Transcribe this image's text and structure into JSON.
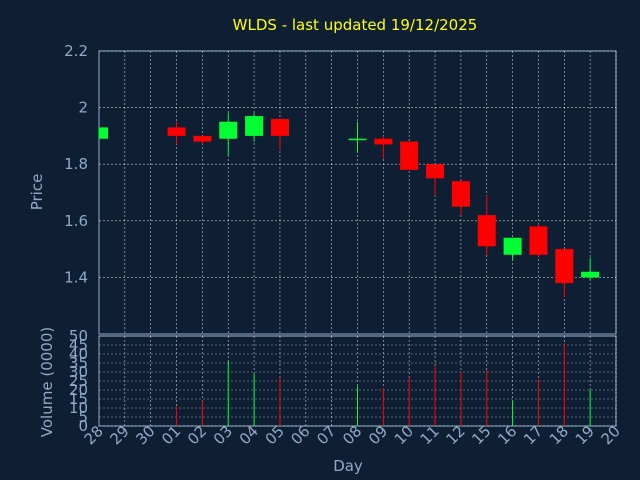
{
  "chart_data": {
    "type": "candlestick",
    "title": "WLDS - last updated 19/12/2025",
    "xlabel": "Day",
    "ylabel": "Price",
    "volume_label": "Volume (0000)",
    "ylim": [
      1.2,
      2.2
    ],
    "y_ticks": [
      "1.4",
      "1.6",
      "1.8",
      "2",
      "2.2"
    ],
    "volume_ylim": [
      0,
      50
    ],
    "volume_ticks": [
      "0",
      "5",
      "10",
      "15",
      "20",
      "25",
      "30",
      "35",
      "40",
      "45",
      "50"
    ],
    "grid": true,
    "colors": {
      "up": "#00ff33",
      "down": "#ff0000",
      "background": "#0f1f33",
      "title": "#ffff00",
      "axis_text": "#8fa9c9",
      "grid": "#ffffff"
    },
    "categories": [
      "28",
      "29",
      "30",
      "01",
      "02",
      "03",
      "04",
      "05",
      "06",
      "07",
      "08",
      "09",
      "10",
      "11",
      "12",
      "15",
      "16",
      "17",
      "18",
      "19",
      "20"
    ],
    "candles": [
      {
        "day": "28",
        "open": 1.89,
        "close": 1.93,
        "high": 1.93,
        "low": 1.89,
        "volume": 0
      },
      {
        "day": "01",
        "open": 1.93,
        "close": 1.9,
        "high": 1.95,
        "low": 1.87,
        "volume": 11
      },
      {
        "day": "02",
        "open": 1.9,
        "close": 1.88,
        "high": 1.9,
        "low": 1.87,
        "volume": 14
      },
      {
        "day": "03",
        "open": 1.89,
        "close": 1.95,
        "high": 1.98,
        "low": 1.83,
        "volume": 36
      },
      {
        "day": "04",
        "open": 1.9,
        "close": 1.97,
        "high": 1.98,
        "low": 1.88,
        "volume": 29
      },
      {
        "day": "05",
        "open": 1.96,
        "close": 1.9,
        "high": 1.96,
        "low": 1.85,
        "volume": 27
      },
      {
        "day": "08",
        "open": 1.89,
        "close": 1.89,
        "high": 1.95,
        "low": 1.84,
        "volume": 22
      },
      {
        "day": "09",
        "open": 1.89,
        "close": 1.87,
        "high": 1.9,
        "low": 1.82,
        "volume": 21
      },
      {
        "day": "10",
        "open": 1.88,
        "close": 1.78,
        "high": 1.88,
        "low": 1.78,
        "volume": 27
      },
      {
        "day": "11",
        "open": 1.8,
        "close": 1.75,
        "high": 1.8,
        "low": 1.69,
        "volume": 33
      },
      {
        "day": "12",
        "open": 1.74,
        "close": 1.65,
        "high": 1.74,
        "low": 1.62,
        "volume": 30
      },
      {
        "day": "15",
        "open": 1.62,
        "close": 1.51,
        "high": 1.69,
        "low": 1.48,
        "volume": 31
      },
      {
        "day": "16",
        "open": 1.48,
        "close": 1.54,
        "high": 1.54,
        "low": 1.46,
        "volume": 14
      },
      {
        "day": "17",
        "open": 1.58,
        "close": 1.48,
        "high": 1.59,
        "low": 1.47,
        "volume": 26
      },
      {
        "day": "18",
        "open": 1.5,
        "close": 1.38,
        "high": 1.5,
        "low": 1.33,
        "volume": 46
      },
      {
        "day": "19",
        "open": 1.4,
        "close": 1.42,
        "high": 1.47,
        "low": 1.39,
        "volume": 20
      }
    ]
  }
}
